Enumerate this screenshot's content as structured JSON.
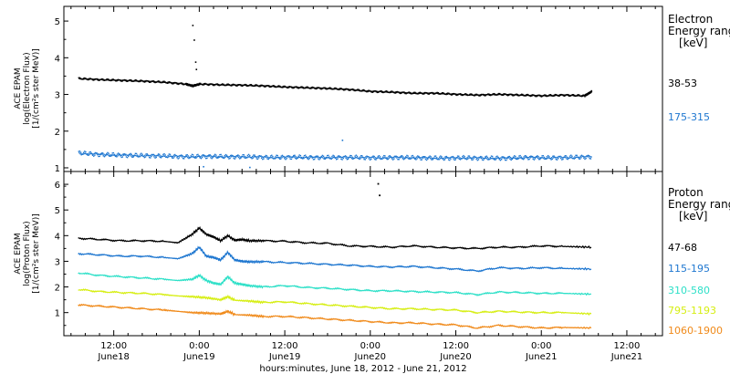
{
  "xlabel": "hours:minutes, June 18, 2012 - June 21, 2012",
  "x_ticks": [
    {
      "time": "12:00",
      "date": "June18"
    },
    {
      "time": "0:00",
      "date": "June19"
    },
    {
      "time": "12:00",
      "date": "June19"
    },
    {
      "time": "0:00",
      "date": "June20"
    },
    {
      "time": "12:00",
      "date": "June20"
    },
    {
      "time": "0:00",
      "date": "June21"
    },
    {
      "time": "12:00",
      "date": "June21"
    }
  ],
  "panels": {
    "electron": {
      "ylabel_lines": [
        "ACE EPAM",
        "log(Electron Flux)",
        "[1/(cm²s ster MeV)]"
      ],
      "legend_title": [
        "Electron",
        "Energy ranges",
        "[keV]"
      ]
    },
    "proton": {
      "ylabel_lines": [
        "ACE EPAM",
        "log(Proton Flux)",
        "[1/(cm²s ster MeV)]"
      ],
      "legend_title": [
        "Proton",
        "Energy ranges",
        "[keV]"
      ]
    }
  },
  "colors": {
    "black": "#000000",
    "blue": "#1f77d0",
    "cyan": "#2ee0c8",
    "yellow": "#d6ee12",
    "orange": "#f08a1a"
  },
  "chart_data": [
    {
      "type": "scatter",
      "panel": "electron",
      "x_unit": "hours since June 18, 2012 00:00 UT",
      "xlim": [
        5,
        89
      ],
      "ylim": [
        0.9,
        5.4
      ],
      "yticks": [
        1,
        2,
        3,
        4,
        5
      ],
      "series": [
        {
          "name": "38-53",
          "color": "black",
          "x": [
            7,
            10,
            13,
            16,
            19,
            22,
            23,
            24,
            27,
            30,
            33,
            36,
            39,
            42,
            45,
            48,
            51,
            54,
            57,
            60,
            63,
            66,
            69,
            72,
            75,
            78,
            79
          ],
          "y": [
            3.45,
            3.42,
            3.4,
            3.38,
            3.35,
            3.3,
            3.25,
            3.3,
            3.28,
            3.27,
            3.25,
            3.22,
            3.2,
            3.18,
            3.15,
            3.1,
            3.08,
            3.05,
            3.05,
            3.02,
            3.0,
            3.02,
            3.0,
            2.98,
            3.0,
            2.98,
            3.1
          ],
          "outliers": [
            [
              23.0,
              4.9
            ],
            [
              23.2,
              4.5
            ],
            [
              23.4,
              3.9
            ],
            [
              23.5,
              3.7
            ]
          ]
        },
        {
          "name": "175-315",
          "color": "blue",
          "x": [
            7,
            10,
            13,
            16,
            19,
            22,
            25,
            28,
            31,
            34,
            37,
            40,
            43,
            46,
            49,
            52,
            55,
            58,
            61,
            64,
            67,
            70,
            73,
            76,
            79
          ],
          "y": [
            1.42,
            1.38,
            1.36,
            1.35,
            1.34,
            1.32,
            1.33,
            1.32,
            1.32,
            1.3,
            1.31,
            1.3,
            1.3,
            1.3,
            1.29,
            1.3,
            1.29,
            1.28,
            1.29,
            1.28,
            1.28,
            1.3,
            1.29,
            1.3,
            1.32
          ],
          "outliers": [
            [
              44.0,
              1.77
            ],
            [
              24.5,
              1.05
            ],
            [
              31.0,
              1.03
            ]
          ]
        }
      ]
    },
    {
      "type": "line",
      "panel": "proton",
      "x_unit": "hours since June 18, 2012 00:00 UT",
      "xlim": [
        5,
        89
      ],
      "ylim": [
        0.1,
        6.5
      ],
      "yticks": [
        1,
        2,
        3,
        4,
        5,
        6
      ],
      "series": [
        {
          "name": "47-68",
          "color": "black",
          "x": [
            7,
            10,
            13,
            16,
            19,
            21,
            23,
            24,
            25,
            26,
            27,
            28,
            29,
            30,
            31,
            33,
            36,
            39,
            42,
            45,
            48,
            51,
            54,
            57,
            60,
            63,
            66,
            69,
            72,
            75,
            79
          ],
          "y": [
            3.9,
            3.85,
            3.8,
            3.8,
            3.78,
            3.72,
            4.05,
            4.3,
            4.05,
            3.95,
            3.8,
            4.0,
            3.82,
            3.85,
            3.8,
            3.8,
            3.78,
            3.72,
            3.7,
            3.6,
            3.58,
            3.55,
            3.6,
            3.55,
            3.52,
            3.5,
            3.55,
            3.55,
            3.6,
            3.58,
            3.55
          ],
          "outliers": [
            [
              49.0,
              6.05
            ],
            [
              49.2,
              5.6
            ]
          ]
        },
        {
          "name": "115-195",
          "color": "blue",
          "x": [
            7,
            10,
            13,
            16,
            19,
            21,
            23,
            24,
            25,
            26,
            27,
            28,
            29,
            30,
            31,
            33,
            36,
            39,
            42,
            45,
            48,
            51,
            54,
            57,
            60,
            63,
            66,
            69,
            72,
            75,
            79
          ],
          "y": [
            3.3,
            3.25,
            3.2,
            3.2,
            3.15,
            3.1,
            3.3,
            3.55,
            3.2,
            3.15,
            3.05,
            3.35,
            3.05,
            3.0,
            2.98,
            2.98,
            2.95,
            2.92,
            2.88,
            2.85,
            2.8,
            2.78,
            2.8,
            2.75,
            2.7,
            2.62,
            2.75,
            2.72,
            2.75,
            2.72,
            2.7
          ]
        },
        {
          "name": "310-580",
          "color": "cyan",
          "x": [
            7,
            10,
            13,
            16,
            19,
            21,
            23,
            24,
            25,
            26,
            27,
            28,
            29,
            30,
            31,
            33,
            36,
            39,
            42,
            45,
            48,
            51,
            54,
            57,
            60,
            63,
            66,
            69,
            72,
            75,
            79
          ],
          "y": [
            2.55,
            2.45,
            2.4,
            2.35,
            2.3,
            2.25,
            2.3,
            2.45,
            2.25,
            2.15,
            2.1,
            2.4,
            2.15,
            2.1,
            2.05,
            2.0,
            2.05,
            1.98,
            1.95,
            1.9,
            1.85,
            1.85,
            1.82,
            1.8,
            1.78,
            1.7,
            1.8,
            1.78,
            1.75,
            1.75,
            1.72
          ]
        },
        {
          "name": "795-1193",
          "color": "yellow",
          "x": [
            7,
            10,
            13,
            16,
            19,
            21,
            23,
            25,
            27,
            28,
            29,
            31,
            33,
            36,
            39,
            42,
            45,
            48,
            51,
            54,
            57,
            60,
            63,
            66,
            69,
            72,
            75,
            79
          ],
          "y": [
            1.9,
            1.82,
            1.78,
            1.75,
            1.7,
            1.65,
            1.62,
            1.58,
            1.5,
            1.62,
            1.48,
            1.45,
            1.4,
            1.42,
            1.35,
            1.3,
            1.25,
            1.2,
            1.15,
            1.15,
            1.12,
            1.1,
            1.0,
            1.05,
            1.02,
            1.0,
            1.0,
            0.95
          ]
        },
        {
          "name": "1060-1900",
          "color": "orange",
          "x": [
            7,
            10,
            13,
            16,
            19,
            21,
            23,
            25,
            27,
            28,
            29,
            31,
            33,
            36,
            39,
            42,
            45,
            48,
            51,
            54,
            57,
            60,
            63,
            66,
            69,
            72,
            75,
            79
          ],
          "y": [
            1.3,
            1.25,
            1.2,
            1.15,
            1.1,
            1.05,
            1.0,
            0.98,
            0.95,
            1.05,
            0.92,
            0.9,
            0.85,
            0.85,
            0.8,
            0.75,
            0.7,
            0.65,
            0.6,
            0.6,
            0.55,
            0.52,
            0.4,
            0.5,
            0.45,
            0.4,
            0.42,
            0.4
          ]
        }
      ]
    }
  ]
}
